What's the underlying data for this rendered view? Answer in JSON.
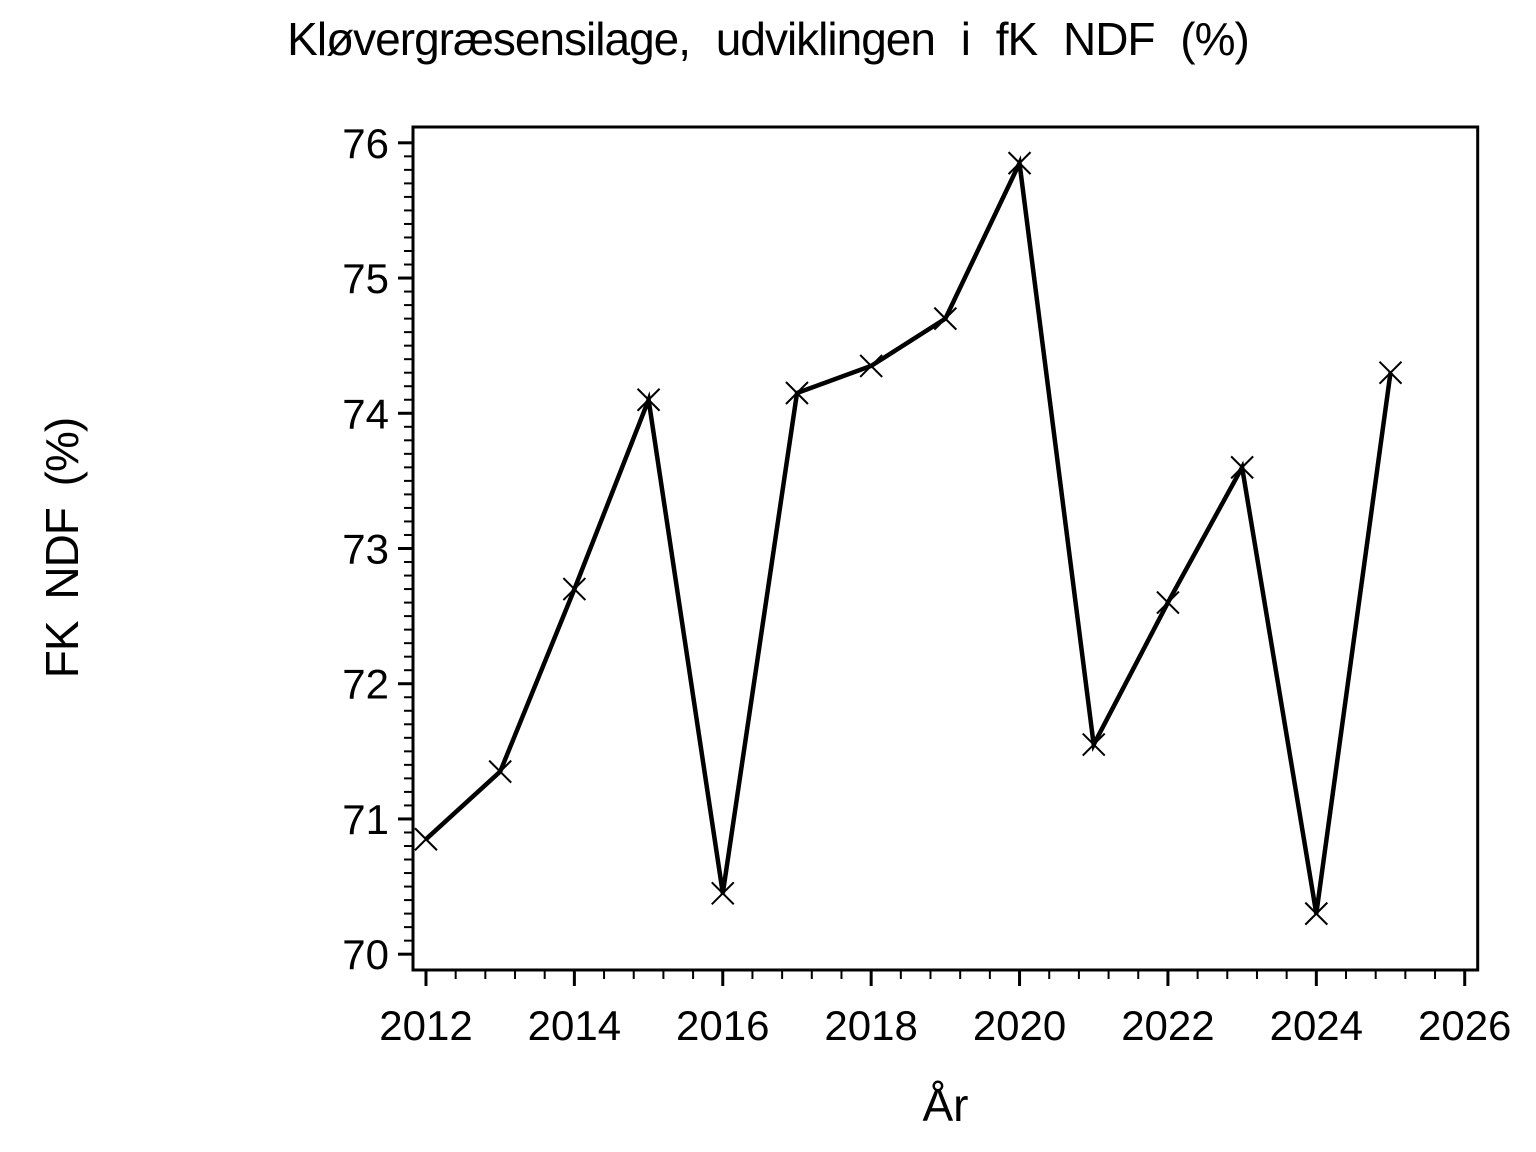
{
  "chart_data": {
    "type": "line",
    "title": "Kløvergræsensilage, udviklingen i fK NDF (%)",
    "xlabel": "År",
    "ylabel": "FK NDF (%)",
    "x": [
      2012,
      2013,
      2014,
      2015,
      2016,
      2017,
      2018,
      2019,
      2020,
      2021,
      2022,
      2023,
      2024,
      2025
    ],
    "values": [
      70.85,
      71.35,
      72.7,
      74.1,
      70.45,
      74.15,
      74.35,
      74.7,
      75.85,
      71.55,
      72.6,
      73.6,
      70.3,
      74.3
    ],
    "x_ticks": [
      2012,
      2014,
      2016,
      2018,
      2020,
      2022,
      2024,
      2026
    ],
    "y_ticks": [
      70,
      71,
      72,
      73,
      74,
      75,
      76
    ],
    "x_minor_step": 0.4,
    "y_minor_step": 0.1,
    "xlim": [
      2011.825,
      2026.175
    ],
    "ylim": [
      69.883,
      76.117
    ],
    "marker": "x",
    "line_color": "#000000",
    "axis_color": "#000000",
    "background": "#ffffff",
    "grid": "off",
    "legend": "none"
  }
}
